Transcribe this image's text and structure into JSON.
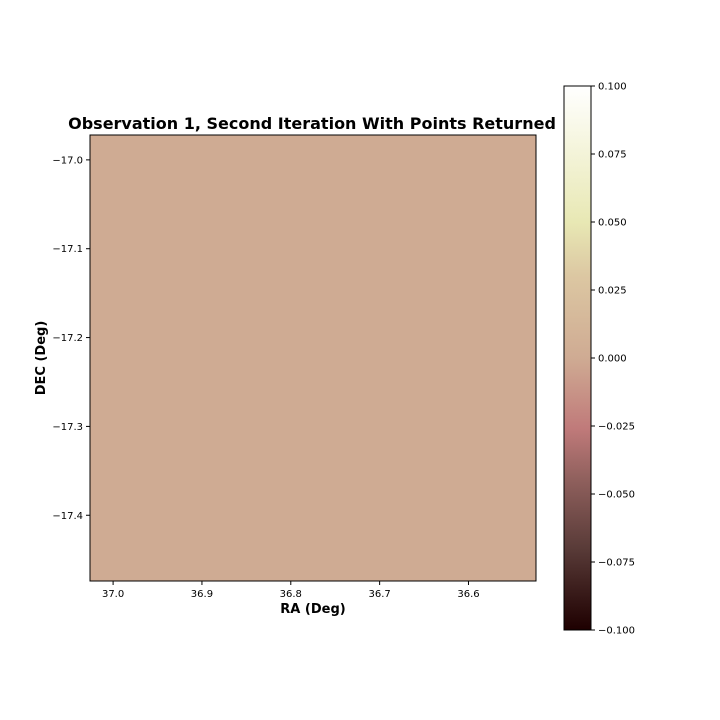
{
  "chart_data": {
    "type": "heatmap",
    "title": "Observation 1, Second Iteration With Points Returned",
    "xlabel": "RA (Deg)",
    "ylabel": "DEC (Deg)",
    "x_ticks": [
      "37.0",
      "36.9",
      "36.8",
      "36.7",
      "36.6"
    ],
    "x_tick_values": [
      37.0,
      36.9,
      36.8,
      36.7,
      36.6
    ],
    "xlim": [
      37.026,
      36.524
    ],
    "x_inverted": true,
    "y_ticks": [
      "−17.0",
      "−17.1",
      "−17.2",
      "−17.3",
      "−17.4"
    ],
    "y_tick_values": [
      -17.0,
      -17.1,
      -17.2,
      -17.3,
      -17.4
    ],
    "ylim": [
      -17.474,
      -16.972
    ],
    "values": [
      [
        0.0
      ]
    ],
    "fill_color": "#cfab93",
    "grid": false,
    "colorbar": {
      "colormap": "pink",
      "vmin": -0.1,
      "vmax": 0.1,
      "ticks": [
        "−0.100",
        "−0.075",
        "−0.050",
        "−0.025",
        "0.000",
        "0.025",
        "0.050",
        "0.075",
        "0.100"
      ],
      "tick_values": [
        -0.1,
        -0.075,
        -0.05,
        -0.025,
        0.0,
        0.025,
        0.05,
        0.075,
        0.1
      ]
    }
  }
}
